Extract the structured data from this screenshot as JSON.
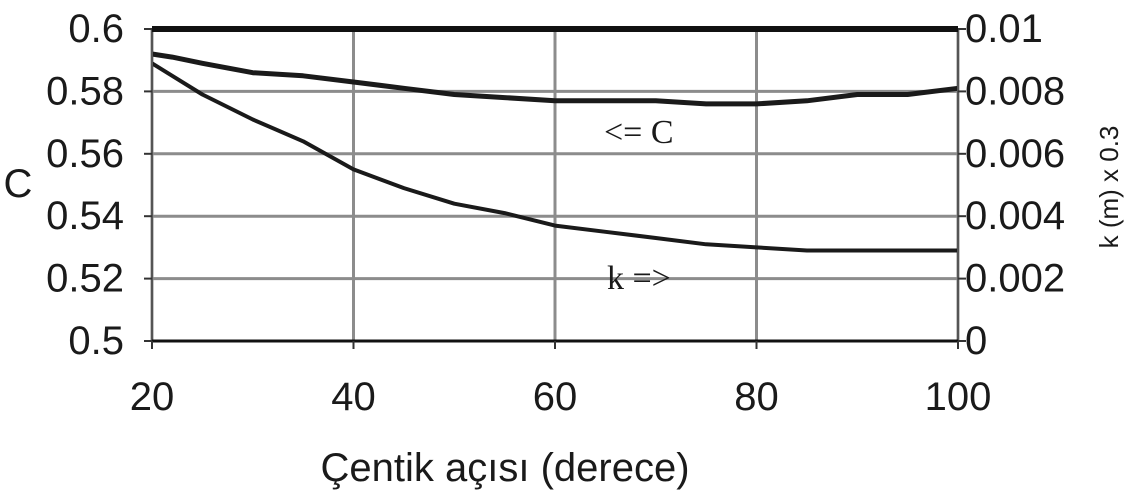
{
  "chart_data": {
    "type": "line",
    "xlabel": "Çentik açısı (derece)",
    "ylabel": "C",
    "y2label": "k (m) x 0.3",
    "xlim": [
      20,
      100
    ],
    "ylim": [
      0.5,
      0.6
    ],
    "y2lim": [
      0,
      0.01
    ],
    "grid": true,
    "x_ticks": [
      "20",
      "40",
      "60",
      "80",
      "100"
    ],
    "y_ticks": [
      "0.5",
      "0.52",
      "0.54",
      "0.56",
      "0.58",
      "0.6"
    ],
    "y2_ticks": [
      "0",
      "0.002",
      "0.004",
      "0.006",
      "0.008",
      "0.01"
    ],
    "annotations": [
      "<= C",
      "k =>"
    ],
    "series": [
      {
        "name": "C",
        "axis": "left",
        "x": [
          20,
          22,
          25,
          30,
          35,
          40,
          45,
          50,
          55,
          60,
          65,
          70,
          75,
          80,
          85,
          90,
          95,
          100
        ],
        "values": [
          0.592,
          0.591,
          0.589,
          0.586,
          0.585,
          0.583,
          0.581,
          0.579,
          0.578,
          0.577,
          0.577,
          0.577,
          0.576,
          0.576,
          0.577,
          0.579,
          0.579,
          0.581
        ]
      },
      {
        "name": "k",
        "axis": "right",
        "x": [
          20,
          22,
          25,
          30,
          35,
          40,
          45,
          50,
          55,
          60,
          65,
          70,
          75,
          80,
          85,
          90,
          95,
          100
        ],
        "values": [
          0.0089,
          0.0085,
          0.0079,
          0.0071,
          0.0064,
          0.0055,
          0.0049,
          0.0044,
          0.0041,
          0.0037,
          0.0035,
          0.0033,
          0.0031,
          0.003,
          0.0029,
          0.0029,
          0.0029,
          0.0029
        ]
      }
    ],
    "colors": {
      "C": "#1a1a1a",
      "k": "#1a1a1a",
      "grid": "#8c8c8c"
    }
  }
}
